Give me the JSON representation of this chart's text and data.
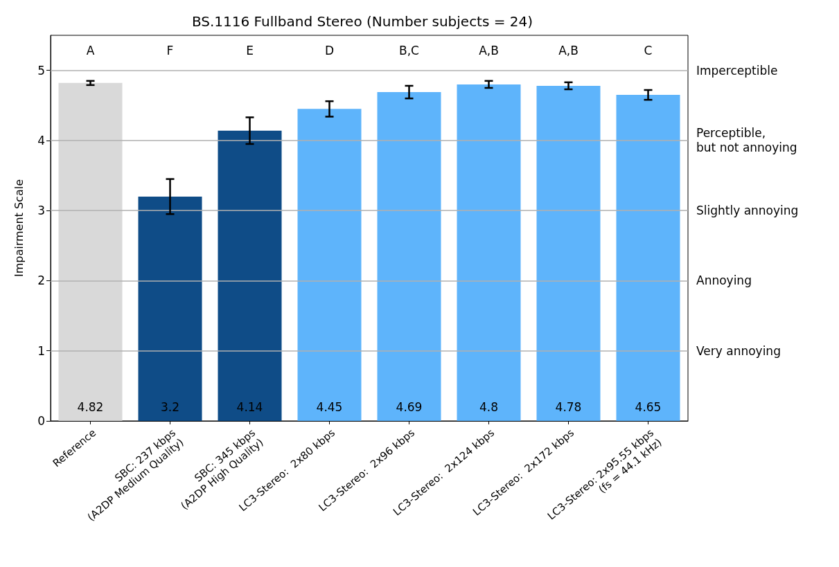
{
  "chart_data": {
    "type": "bar",
    "title": "BS.1116 Fullband Stereo (Number subjects = 24)",
    "ylabel": "Impairment Scale",
    "categories": [
      "Reference",
      "SBC: 237 kbps\n(A2DP Medium Quality)",
      "SBC: 345 kbps\n(A2DP High Quality)",
      "LC3-Stereo:  2x80 kbps",
      "LC3-Stereo:  2x96 kbps",
      "LC3-Stereo:  2x124 kbps",
      "LC3-Stereo:  2x172 kbps",
      "LC3-Stereo: 2x95.55 kbps\n(fs = 44.1 kHz)"
    ],
    "values": [
      4.82,
      3.2,
      4.14,
      4.45,
      4.69,
      4.8,
      4.78,
      4.65
    ],
    "colors": [
      "#d9d9d9",
      "#0f4c87",
      "#0f4c87",
      "#5eb4fb",
      "#5eb4fb",
      "#5eb4fb",
      "#5eb4fb",
      "#5eb4fb"
    ],
    "errors": [
      0.03,
      0.25,
      0.19,
      0.11,
      0.09,
      0.05,
      0.05,
      0.07
    ],
    "data_labels": true,
    "ylim": [
      0,
      5.5
    ],
    "yticks": [
      0,
      1,
      2,
      3,
      4,
      5
    ],
    "ref_lines": [
      {
        "axis": "y",
        "value": 1,
        "label": "Very annoying",
        "color": "#b0b0b0"
      },
      {
        "axis": "y",
        "value": 2,
        "label": "Annoying",
        "color": "#b0b0b0"
      },
      {
        "axis": "y",
        "value": 3,
        "label": "Slightly annoying",
        "color": "#b0b0b0"
      },
      {
        "axis": "y",
        "value": 4,
        "label": "Perceptible,\nbut not annoying",
        "color": "#b0b0b0"
      },
      {
        "axis": "y",
        "value": 5,
        "label": "Imperceptible",
        "color": "#b0b0b0"
      }
    ],
    "annotations": [
      "A",
      "F",
      "E",
      "D",
      "B,C",
      "A,B",
      "A,B",
      "C"
    ]
  }
}
